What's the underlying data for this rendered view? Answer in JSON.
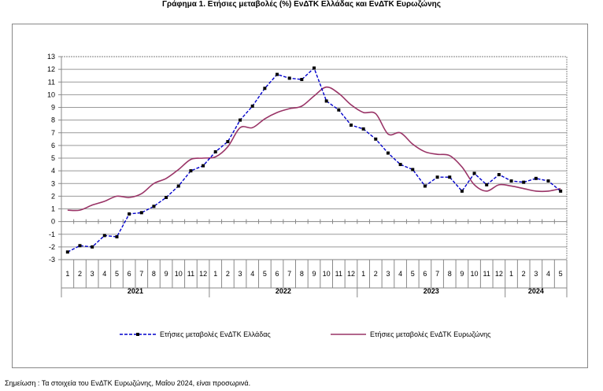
{
  "chart_data": {
    "type": "line",
    "title": "Γράφημα 1. Ετήσιες μεταβολές (%) ΕνΔΤΚ Ελλάδας και ΕνΔΤΚ Ευρωζώνης",
    "ylim": [
      -3,
      13
    ],
    "yticks": [
      "-3",
      "-2",
      "-1",
      "0",
      "1",
      "2",
      "3",
      "4",
      "5",
      "6",
      "7",
      "8",
      "9",
      "10",
      "11",
      "12",
      "13"
    ],
    "years": [
      {
        "label": "2021",
        "months": 12
      },
      {
        "label": "2022",
        "months": 12
      },
      {
        "label": "2023",
        "months": 12
      },
      {
        "label": "2024",
        "months": 5
      }
    ],
    "months": [
      "1",
      "2",
      "3",
      "4",
      "5",
      "6",
      "7",
      "8",
      "9",
      "10",
      "11",
      "12",
      "1",
      "2",
      "3",
      "4",
      "5",
      "6",
      "7",
      "8",
      "9",
      "10",
      "11",
      "12",
      "1",
      "2",
      "3",
      "4",
      "5",
      "6",
      "7",
      "8",
      "9",
      "10",
      "11",
      "12",
      "1",
      "2",
      "3",
      "4",
      "5"
    ],
    "series": [
      {
        "name": "Ετήσιες μεταβολές ΕνΔΤΚ Ελλάδας",
        "color": "#0000cc",
        "values": [
          -2.4,
          -1.9,
          -2.0,
          -1.1,
          -1.2,
          0.6,
          0.7,
          1.2,
          1.9,
          2.8,
          4.0,
          4.4,
          5.5,
          6.3,
          8.0,
          9.1,
          10.5,
          11.6,
          11.3,
          11.2,
          12.1,
          9.5,
          8.8,
          7.6,
          7.3,
          6.5,
          5.4,
          4.5,
          4.1,
          2.8,
          3.5,
          3.5,
          2.4,
          3.8,
          2.9,
          3.7,
          3.2,
          3.1,
          3.4,
          3.2,
          2.4
        ]
      },
      {
        "name": "Ετήσιες μεταβολές ΕνΔΤΚ Ευρωζώνης",
        "color": "#993366",
        "values": [
          0.9,
          0.9,
          1.3,
          1.6,
          2.0,
          1.9,
          2.2,
          3.0,
          3.4,
          4.1,
          4.9,
          5.0,
          5.1,
          5.9,
          7.4,
          7.4,
          8.1,
          8.6,
          8.9,
          9.1,
          9.9,
          10.6,
          10.1,
          9.2,
          8.6,
          8.5,
          6.9,
          7.0,
          6.1,
          5.5,
          5.3,
          5.2,
          4.3,
          2.9,
          2.4,
          2.9,
          2.8,
          2.6,
          2.4,
          2.4,
          2.6
        ]
      }
    ],
    "legend": "bottom"
  },
  "note": "Σημείωση :  Τα στοιχεία του ΕνΔΤΚ Ευρωζώνης, Μαΐου 2024, είναι προσωρινά."
}
